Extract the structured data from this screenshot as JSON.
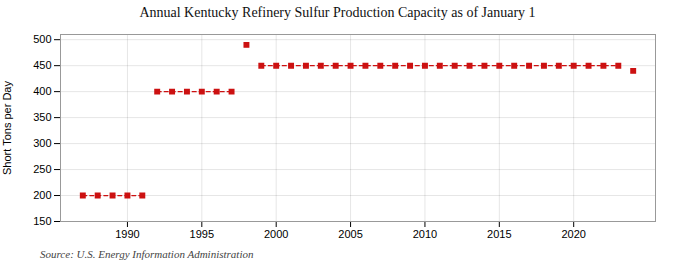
{
  "chart_data": {
    "type": "line",
    "title": "Annual Kentucky Refinery Sulfur Production Capacity as of January 1",
    "ylabel": "Short Tons per Day",
    "source": "Source: U.S. Energy Information Administration",
    "color": "#cc1111",
    "marker": "square",
    "line_style": "dashed",
    "grid": true,
    "series": [
      {
        "x": [
          1987,
          1988,
          1989,
          1990,
          1991
        ],
        "values": [
          200,
          200,
          200,
          200,
          200
        ]
      },
      {
        "x": [
          1992,
          1993,
          1994,
          1995,
          1996,
          1997
        ],
        "values": [
          400,
          400,
          400,
          400,
          400,
          400
        ]
      },
      {
        "x": [
          1998
        ],
        "values": [
          490
        ]
      },
      {
        "x": [
          1999,
          2000,
          2001,
          2002,
          2003,
          2004,
          2005,
          2006,
          2007,
          2008,
          2009,
          2010,
          2011,
          2012,
          2013,
          2014,
          2015,
          2016,
          2017,
          2018,
          2019,
          2020,
          2021,
          2022,
          2023
        ],
        "values": [
          450,
          450,
          450,
          450,
          450,
          450,
          450,
          450,
          450,
          450,
          450,
          450,
          450,
          450,
          450,
          450,
          450,
          450,
          450,
          450,
          450,
          450,
          450,
          450,
          450
        ]
      },
      {
        "x": [
          2024
        ],
        "values": [
          440
        ]
      }
    ],
    "xlim": [
      1985.5,
      2025.5
    ],
    "xticks": [
      1990,
      1995,
      2000,
      2005,
      2010,
      2015,
      2020
    ],
    "ylim": [
      150,
      510
    ],
    "yticks": [
      150,
      200,
      250,
      300,
      350,
      400,
      450,
      500
    ]
  }
}
